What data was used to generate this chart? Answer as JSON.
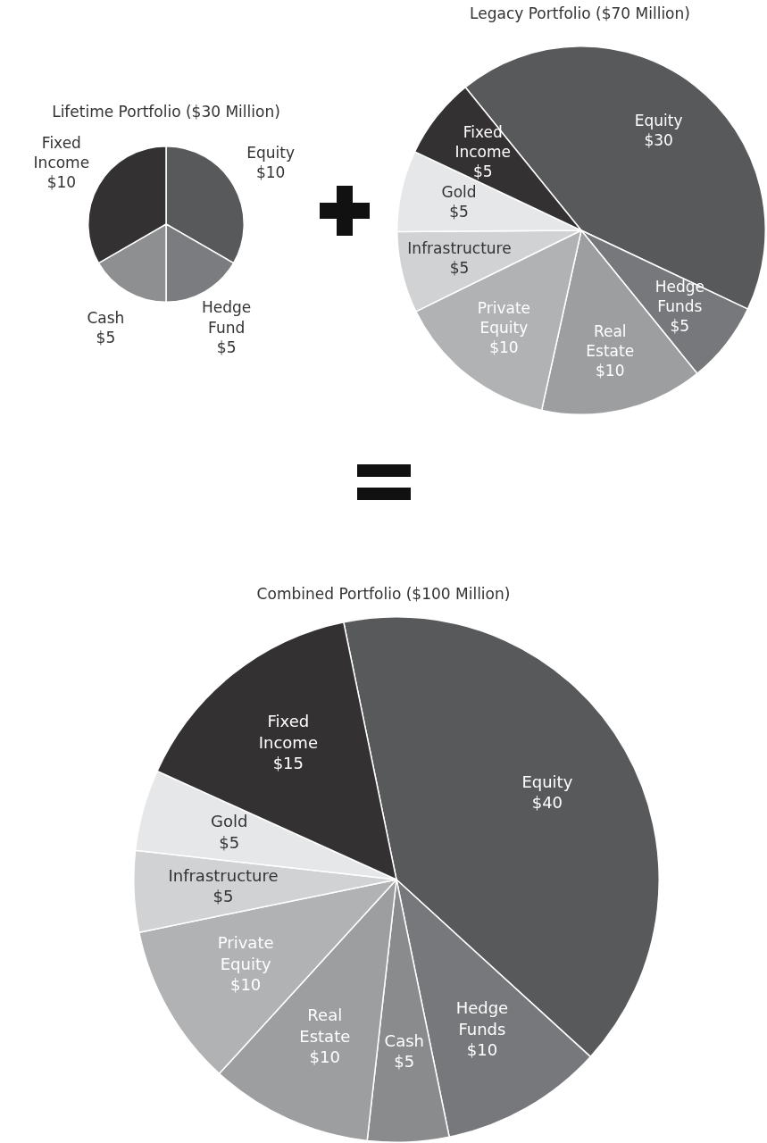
{
  "chart_data": [
    {
      "type": "pie",
      "title": "Lifetime Portfolio ($30 Million)",
      "categories": [
        "Equity",
        "Hedge Fund",
        "Cash",
        "Fixed Income"
      ],
      "values": [
        10,
        5,
        5,
        10
      ],
      "value_labels": [
        "$10",
        "$5",
        "$5",
        "$10"
      ],
      "colors": [
        "#58595b",
        "#7b7c7f",
        "#8e8f91",
        "#333132"
      ]
    },
    {
      "type": "pie",
      "title": "Legacy Portfolio ($70 Million)",
      "categories": [
        "Equity",
        "Hedge Funds",
        "Real Estate",
        "Private Equity",
        "Infrastructure",
        "Gold",
        "Fixed Income"
      ],
      "values": [
        30,
        5,
        10,
        10,
        5,
        5,
        5
      ],
      "value_labels": [
        "$30",
        "$5",
        "$10",
        "$10",
        "$5",
        "$5",
        "$5"
      ],
      "colors": [
        "#58595b",
        "#77787b",
        "#9d9ea0",
        "#b1b2b4",
        "#d1d2d3",
        "#e6e7e8",
        "#333132"
      ]
    },
    {
      "type": "pie",
      "title": "Combined Portfolio ($100 Million)",
      "categories": [
        "Equity",
        "Hedge Funds",
        "Cash",
        "Real Estate",
        "Private Equity",
        "Infrastructure",
        "Gold",
        "Fixed Income"
      ],
      "values": [
        40,
        10,
        5,
        10,
        10,
        5,
        5,
        15
      ],
      "value_labels": [
        "$40",
        "$10",
        "$5",
        "$10",
        "$10",
        "$5",
        "$5",
        "$15"
      ],
      "colors": [
        "#58595b",
        "#77787b",
        "#8a8b8d",
        "#9d9ea0",
        "#b1b2b4",
        "#d1d2d3",
        "#e6e7e8",
        "#333132"
      ]
    }
  ]
}
